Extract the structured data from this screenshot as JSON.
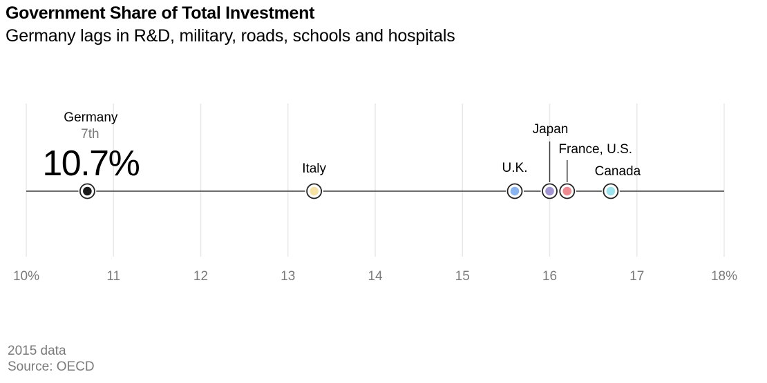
{
  "header": {
    "title": "Government Share of Total Investment",
    "subtitle": "Germany lags in R&D, military, roads, schools and hospitals"
  },
  "chart_data": {
    "type": "scatter",
    "title": "Government Share of Total Investment",
    "subtitle": "Germany lags in R&D, military, roads, schools and hospitals",
    "xlabel": "",
    "ylabel": "",
    "xlim": [
      10,
      18
    ],
    "x_ticks": [
      10,
      11,
      12,
      13,
      14,
      15,
      16,
      17,
      18
    ],
    "x_tick_labels": [
      "10%",
      "11",
      "12",
      "13",
      "14",
      "15",
      "16",
      "17",
      "18%"
    ],
    "grid": true,
    "points": [
      {
        "label": "Germany",
        "value": 10.7,
        "color": "#1a1a1a",
        "rank_label": "7th",
        "value_label": "10.7%"
      },
      {
        "label": "Italy",
        "value": 13.3,
        "color": "#f6e2a4"
      },
      {
        "label": "U.K.",
        "value": 15.6,
        "color": "#8ab4f0"
      },
      {
        "label": "Japan",
        "value": 16.0,
        "color": "#a394d2"
      },
      {
        "label": "France, U.S.",
        "value": 16.2,
        "color": "#f08a92"
      },
      {
        "label": "Canada",
        "value": 16.7,
        "color": "#9ee3ee"
      }
    ]
  },
  "footer": {
    "data_note": "2015 data",
    "source": "Source: OECD"
  },
  "colors": {
    "axis_line": "#3a3a3a",
    "gridline": "#e8e8e8",
    "tick_label": "#7a7a7a",
    "rank_label": "#7a7a7a",
    "marker_ring": "#222222",
    "text": "#000000"
  }
}
